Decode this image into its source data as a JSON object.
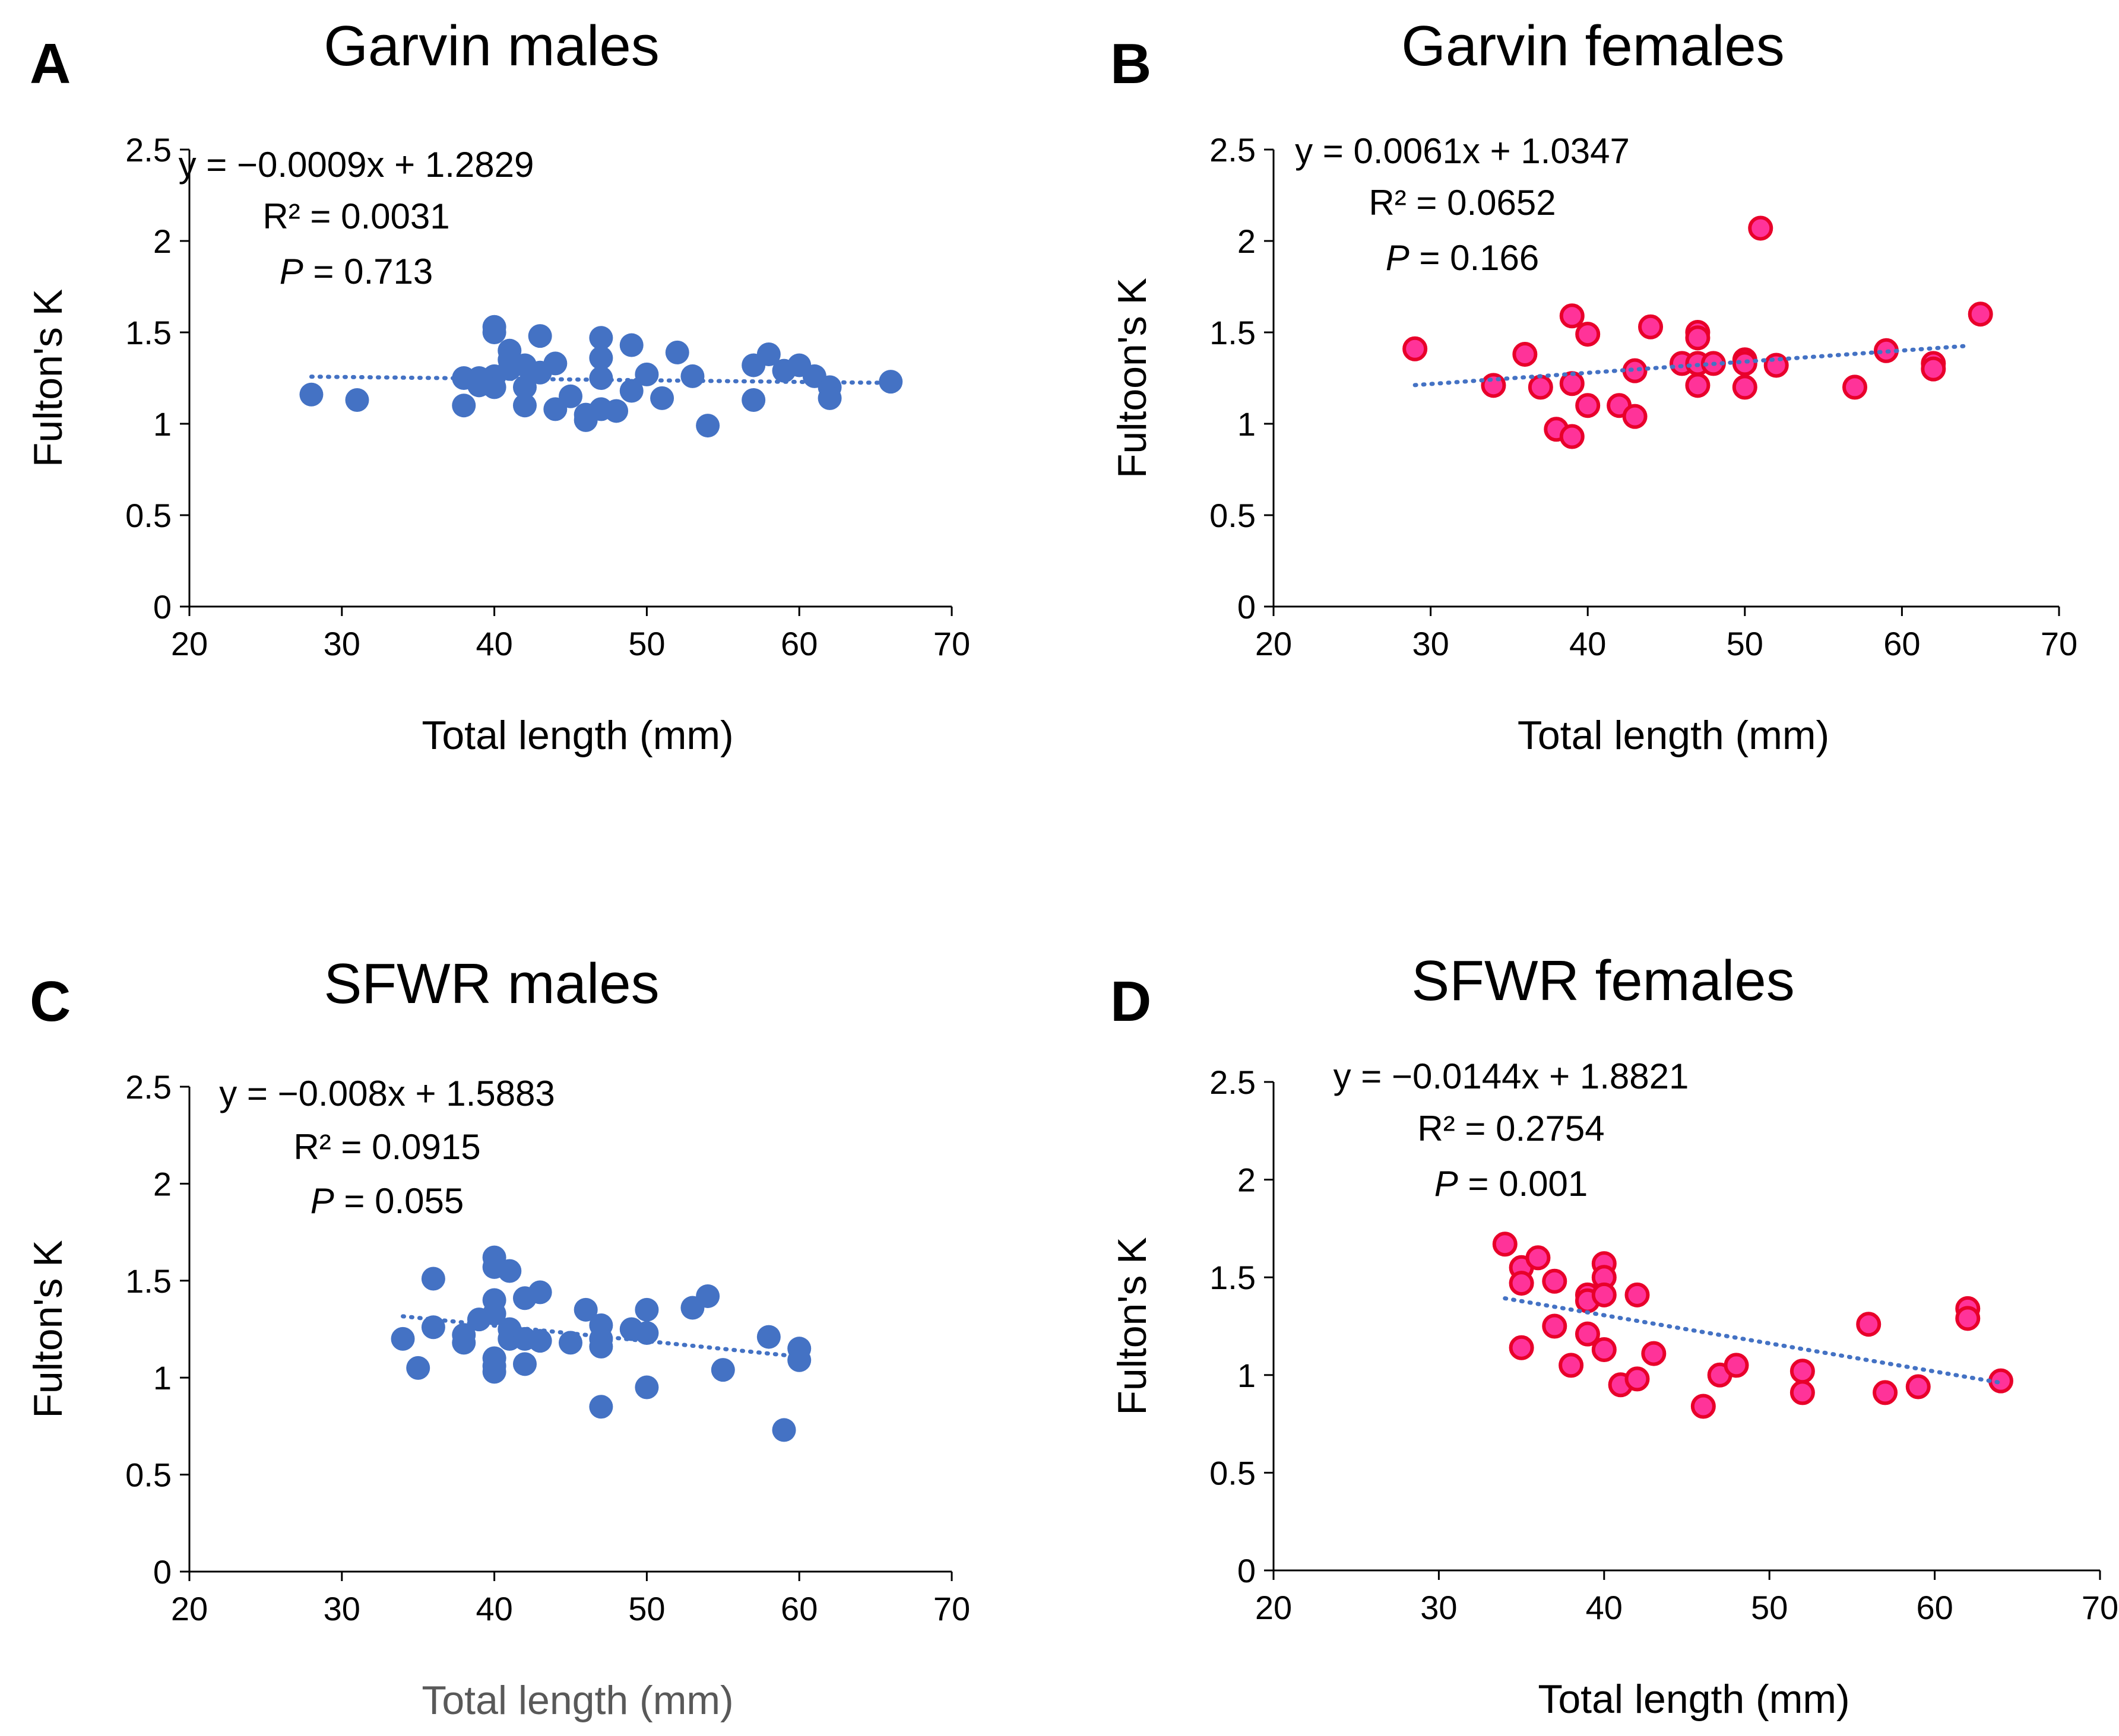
{
  "figure": {
    "colors": {
      "male": "#4472C4",
      "female_fill": "#FF3399",
      "female_edge": "#E8002A",
      "axis": "#000000",
      "xlabel_gray": "#595959"
    }
  },
  "chart_data": [
    {
      "type": "scatter",
      "panel_letter": "A",
      "title": "Garvin males",
      "xlabel": "Total length (mm)",
      "ylabel": "Fulton's K",
      "xlim": [
        20,
        70
      ],
      "ylim": [
        0,
        2.5
      ],
      "xticks": [
        "20",
        "30",
        "40",
        "50",
        "60",
        "70"
      ],
      "yticks": [
        "0",
        "0.5",
        "1",
        "1.5",
        "2",
        "2.5"
      ],
      "marker": "male",
      "equation": "y = −0.0009x + 1.2829",
      "r2_label": "R² = 0.0031",
      "p_prefix": "P",
      "p_value": " = 0.713",
      "trend": {
        "slope": -0.0009,
        "intercept": 1.2829,
        "x_range": [
          28,
          66
        ]
      },
      "points": [
        [
          28,
          1.16
        ],
        [
          31,
          1.13
        ],
        [
          38,
          1.25
        ],
        [
          38,
          1.1
        ],
        [
          39,
          1.25
        ],
        [
          39,
          1.21
        ],
        [
          40,
          1.53
        ],
        [
          40,
          1.5
        ],
        [
          40,
          1.26
        ],
        [
          40,
          1.2
        ],
        [
          41,
          1.4
        ],
        [
          41,
          1.35
        ],
        [
          41,
          1.3
        ],
        [
          42,
          1.32
        ],
        [
          42,
          1.2
        ],
        [
          42,
          1.1
        ],
        [
          43,
          1.48
        ],
        [
          43,
          1.28
        ],
        [
          44,
          1.33
        ],
        [
          44,
          1.08
        ],
        [
          45,
          1.15
        ],
        [
          46,
          1.02
        ],
        [
          46,
          1.05
        ],
        [
          47,
          1.47
        ],
        [
          47,
          1.36
        ],
        [
          47,
          1.25
        ],
        [
          47,
          1.08
        ],
        [
          48,
          1.07
        ],
        [
          49,
          1.43
        ],
        [
          49,
          1.18
        ],
        [
          50,
          1.27
        ],
        [
          51,
          1.14
        ],
        [
          52,
          1.39
        ],
        [
          53,
          1.26
        ],
        [
          54,
          0.99
        ],
        [
          57,
          1.32
        ],
        [
          57,
          1.13
        ],
        [
          58,
          1.38
        ],
        [
          59,
          1.29
        ],
        [
          60,
          1.32
        ],
        [
          61,
          1.26
        ],
        [
          62,
          1.2
        ],
        [
          62,
          1.14
        ],
        [
          66,
          1.23
        ]
      ]
    },
    {
      "type": "scatter",
      "panel_letter": "B",
      "title": "Garvin females",
      "xlabel": "Total length (mm)",
      "ylabel": "Fultoon's K",
      "xlim": [
        20,
        70
      ],
      "ylim": [
        0,
        2.5
      ],
      "xticks": [
        "20",
        "30",
        "40",
        "50",
        "60",
        "70"
      ],
      "yticks": [
        "0",
        "0.5",
        "1",
        "1.5",
        "2",
        "2.5"
      ],
      "marker": "female",
      "equation": "y = 0.0061x + 1.0347",
      "r2_label": "R² = 0.0652",
      "p_prefix": "P",
      "p_value": " = 0.166",
      "trend": {
        "slope": 0.0061,
        "intercept": 1.0347,
        "x_range": [
          29,
          64
        ]
      },
      "points": [
        [
          29,
          1.41
        ],
        [
          34,
          1.21
        ],
        [
          36,
          1.38
        ],
        [
          37,
          1.2
        ],
        [
          38,
          0.97
        ],
        [
          39,
          1.59
        ],
        [
          39,
          1.22
        ],
        [
          39,
          0.93
        ],
        [
          40,
          1.49
        ],
        [
          40,
          1.1
        ],
        [
          42,
          1.1
        ],
        [
          43,
          1.29
        ],
        [
          43,
          1.04
        ],
        [
          44,
          1.53
        ],
        [
          46,
          1.33
        ],
        [
          47,
          1.5
        ],
        [
          47,
          1.47
        ],
        [
          47,
          1.33
        ],
        [
          47,
          1.21
        ],
        [
          48,
          1.33
        ],
        [
          50,
          1.35
        ],
        [
          50,
          1.33
        ],
        [
          50,
          1.2
        ],
        [
          51,
          2.07
        ],
        [
          52,
          1.32
        ],
        [
          57,
          1.2
        ],
        [
          59,
          1.4
        ],
        [
          62,
          1.33
        ],
        [
          62,
          1.3
        ],
        [
          65,
          1.6
        ]
      ]
    },
    {
      "type": "scatter",
      "panel_letter": "C",
      "title": "SFWR males",
      "xlabel": "Total length (mm)",
      "ylabel": "Fulton's K",
      "xlim": [
        20,
        70
      ],
      "ylim": [
        0,
        2.5
      ],
      "xticks": [
        "20",
        "30",
        "40",
        "50",
        "60",
        "70"
      ],
      "yticks": [
        "0",
        "0.5",
        "1",
        "1.5",
        "2",
        "2.5"
      ],
      "marker": "male",
      "xlabel_color": "gray",
      "equation": "y = −0.008x + 1.5883",
      "r2_label": "R² = 0.0915",
      "p_prefix": "P",
      "p_value": " = 0.055",
      "trend": {
        "slope": -0.008,
        "intercept": 1.5883,
        "x_range": [
          34,
          60
        ]
      },
      "points": [
        [
          34,
          1.2
        ],
        [
          35,
          1.05
        ],
        [
          36,
          1.51
        ],
        [
          36,
          1.26
        ],
        [
          38,
          1.22
        ],
        [
          38,
          1.18
        ],
        [
          39,
          1.3
        ],
        [
          40,
          1.62
        ],
        [
          40,
          1.57
        ],
        [
          40,
          1.4
        ],
        [
          40,
          1.33
        ],
        [
          40,
          1.1
        ],
        [
          40,
          1.06
        ],
        [
          40,
          1.03
        ],
        [
          41,
          1.55
        ],
        [
          41,
          1.25
        ],
        [
          41,
          1.2
        ],
        [
          42,
          1.41
        ],
        [
          42,
          1.2
        ],
        [
          42,
          1.07
        ],
        [
          43,
          1.44
        ],
        [
          43,
          1.19
        ],
        [
          45,
          1.18
        ],
        [
          46,
          1.35
        ],
        [
          47,
          1.27
        ],
        [
          47,
          1.2
        ],
        [
          47,
          1.16
        ],
        [
          47,
          0.85
        ],
        [
          49,
          1.25
        ],
        [
          50,
          1.35
        ],
        [
          50,
          1.23
        ],
        [
          50,
          0.95
        ],
        [
          53,
          1.36
        ],
        [
          54,
          1.42
        ],
        [
          55,
          1.04
        ],
        [
          58,
          1.21
        ],
        [
          59,
          0.73
        ],
        [
          60,
          1.15
        ],
        [
          60,
          1.09
        ]
      ]
    },
    {
      "type": "scatter",
      "panel_letter": "D",
      "title": "SFWR females",
      "xlabel": "Total length (mm)",
      "ylabel": "Fulton's K",
      "xlim": [
        20,
        70
      ],
      "ylim": [
        0,
        2.5
      ],
      "xticks": [
        "20",
        "30",
        "40",
        "50",
        "60",
        "70"
      ],
      "yticks": [
        "0",
        "0.5",
        "1",
        "1.5",
        "2",
        "2.5"
      ],
      "marker": "female",
      "equation": "y = −0.0144x + 1.8821",
      "r2_label": "R² = 0.2754",
      "p_prefix": "P",
      "p_value": " = 0.001",
      "trend": {
        "slope": -0.0144,
        "intercept": 1.8821,
        "x_range": [
          34,
          64
        ]
      },
      "points": [
        [
          34,
          1.67
        ],
        [
          35,
          1.55
        ],
        [
          35,
          1.47
        ],
        [
          35,
          1.14
        ],
        [
          36,
          1.6
        ],
        [
          37,
          1.48
        ],
        [
          37,
          1.25
        ],
        [
          38,
          1.05
        ],
        [
          39,
          1.41
        ],
        [
          39,
          1.38
        ],
        [
          39,
          1.21
        ],
        [
          40,
          1.57
        ],
        [
          40,
          1.5
        ],
        [
          40,
          1.41
        ],
        [
          40,
          1.13
        ],
        [
          41,
          0.95
        ],
        [
          42,
          1.41
        ],
        [
          42,
          0.98
        ],
        [
          43,
          1.11
        ],
        [
          46,
          0.84
        ],
        [
          47,
          1.0
        ],
        [
          48,
          1.05
        ],
        [
          52,
          1.02
        ],
        [
          52,
          0.91
        ],
        [
          56,
          1.26
        ],
        [
          57,
          0.91
        ],
        [
          59,
          0.94
        ],
        [
          62,
          1.34
        ],
        [
          62,
          1.29
        ],
        [
          64,
          0.97
        ]
      ]
    }
  ]
}
